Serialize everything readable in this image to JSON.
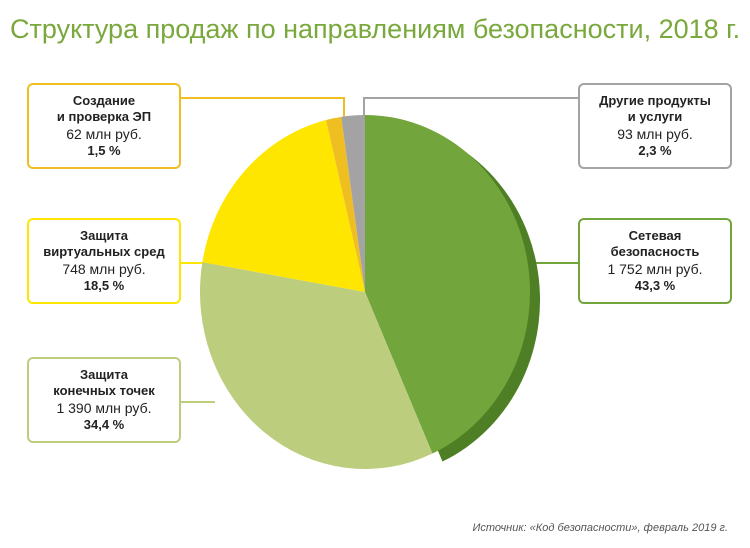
{
  "chart_data": {
    "type": "pie",
    "title": "Структура продаж по направлениям безопасности, 2018 г.",
    "source": "Источник: «Код безопасности», февраль 2019 г.",
    "categories": [
      "Сетевая\nбезопасность",
      "Защита\nконечных точек",
      "Защита\nвиртуальных сред",
      "Создание\nи проверка ЭП",
      "Другие продукты\nи услуги"
    ],
    "values": [
      43.3,
      34.4,
      18.5,
      1.5,
      2.3
    ],
    "value_labels": [
      "43,3 %",
      "34,4 %",
      "18,5 %",
      "1,5 %",
      "2,3 %"
    ],
    "amount_labels": [
      "1 752 млн руб.",
      "1 390 млн руб.",
      "748 млн руб.",
      "62 млн руб.",
      "93 млн руб."
    ],
    "colors": [
      "#72a53b",
      "#bccd7e",
      "#ffe600",
      "#efbf22",
      "#a3a3a3"
    ]
  }
}
